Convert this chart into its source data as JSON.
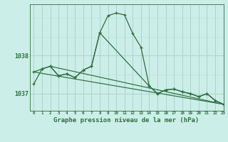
{
  "bg_color": "#cceee8",
  "grid_color_major": "#aad4cc",
  "grid_color_minor": "#bbddd8",
  "line_color": "#2d6e3e",
  "xlabel": "Graphe pression niveau de la mer (hPa)",
  "xlabel_fontsize": 6.5,
  "x_hours": [
    0,
    1,
    2,
    3,
    4,
    5,
    6,
    7,
    8,
    9,
    10,
    11,
    12,
    13,
    14,
    15,
    16,
    17,
    18,
    19,
    20,
    21,
    22,
    23
  ],
  "xlim": [
    -0.5,
    23
  ],
  "ylim": [
    1036.55,
    1039.35
  ],
  "yticks": [
    1037,
    1038
  ],
  "line1_x": [
    0,
    1,
    2,
    3,
    4,
    5,
    6,
    7,
    8,
    9,
    10,
    11,
    12,
    13,
    14,
    15,
    16,
    17,
    18,
    19,
    20,
    21,
    22,
    23
  ],
  "line1_y": [
    1037.25,
    1037.65,
    1037.72,
    1037.47,
    1037.52,
    1037.42,
    1037.62,
    1037.72,
    1038.6,
    1039.05,
    1039.12,
    1039.07,
    1038.58,
    1038.22,
    1037.2,
    1037.0,
    1037.1,
    1037.12,
    1037.05,
    1037.0,
    1036.92,
    1037.0,
    1036.82,
    1036.72
  ],
  "line2_x": [
    0,
    1,
    2,
    3,
    4,
    5,
    6,
    7,
    8,
    14,
    15,
    16,
    17,
    18,
    19,
    20,
    21,
    22,
    23
  ],
  "line2_y": [
    1037.57,
    1037.65,
    1037.72,
    1037.47,
    1037.52,
    1037.42,
    1037.62,
    1037.72,
    1038.6,
    1037.2,
    1037.0,
    1037.1,
    1037.12,
    1037.05,
    1037.0,
    1036.92,
    1037.0,
    1036.82,
    1036.72
  ],
  "trend1_x": [
    0,
    23
  ],
  "trend1_y": [
    1037.57,
    1036.72
  ],
  "trend2_x": [
    2,
    23
  ],
  "trend2_y": [
    1037.72,
    1036.72
  ]
}
